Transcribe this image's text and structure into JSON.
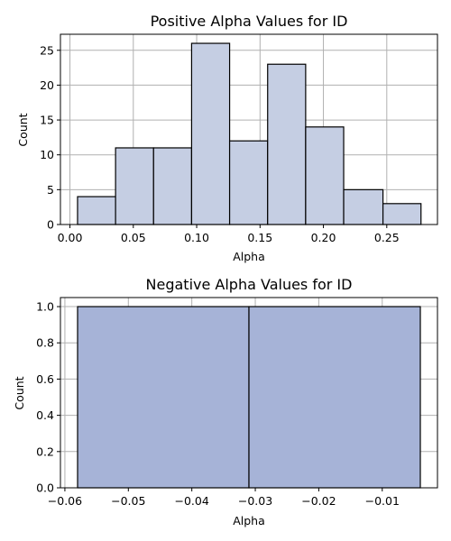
{
  "chart_data": [
    {
      "type": "bar",
      "title": "Positive Alpha Values for ID",
      "xlabel": "Alpha",
      "ylabel": "Count",
      "bins": [
        {
          "x0": 0.006,
          "x1": 0.036,
          "count": 4
        },
        {
          "x0": 0.036,
          "x1": 0.066,
          "count": 11
        },
        {
          "x0": 0.066,
          "x1": 0.096,
          "count": 11
        },
        {
          "x0": 0.096,
          "x1": 0.126,
          "count": 26
        },
        {
          "x0": 0.126,
          "x1": 0.156,
          "count": 12
        },
        {
          "x0": 0.156,
          "x1": 0.186,
          "count": 23
        },
        {
          "x0": 0.186,
          "x1": 0.216,
          "count": 14
        },
        {
          "x0": 0.216,
          "x1": 0.247,
          "count": 5
        },
        {
          "x0": 0.247,
          "x1": 0.277,
          "count": 3
        }
      ],
      "xlim": [
        -0.0075,
        0.29
      ],
      "ylim": [
        0,
        27.3
      ],
      "xticks": [
        0.0,
        0.05,
        0.1,
        0.15,
        0.2,
        0.25
      ],
      "xtick_labels": [
        "0.00",
        "0.05",
        "0.10",
        "0.15",
        "0.20",
        "0.25"
      ],
      "yticks": [
        0,
        5,
        10,
        15,
        20,
        25
      ],
      "ytick_labels": [
        "0",
        "5",
        "10",
        "15",
        "20",
        "25"
      ],
      "grid": true,
      "bar_color": "#c5cee3",
      "edge_color": "#000000"
    },
    {
      "type": "bar",
      "title": "Negative Alpha Values for ID",
      "xlabel": "Alpha",
      "ylabel": "Count",
      "bins": [
        {
          "x0": -0.058,
          "x1": -0.031,
          "count": 1
        },
        {
          "x0": -0.031,
          "x1": -0.004,
          "count": 1
        }
      ],
      "xlim": [
        -0.0607,
        -0.0013
      ],
      "ylim": [
        0,
        1.05
      ],
      "xticks": [
        -0.06,
        -0.05,
        -0.04,
        -0.03,
        -0.02,
        -0.01
      ],
      "xtick_labels": [
        "−0.06",
        "−0.05",
        "−0.04",
        "−0.03",
        "−0.02",
        "−0.01"
      ],
      "yticks": [
        0.0,
        0.2,
        0.4,
        0.6,
        0.8,
        1.0
      ],
      "ytick_labels": [
        "0.0",
        "0.2",
        "0.4",
        "0.6",
        "0.8",
        "1.0"
      ],
      "grid": true,
      "bar_color": "#a6b3d7",
      "edge_color": "#000000"
    }
  ]
}
